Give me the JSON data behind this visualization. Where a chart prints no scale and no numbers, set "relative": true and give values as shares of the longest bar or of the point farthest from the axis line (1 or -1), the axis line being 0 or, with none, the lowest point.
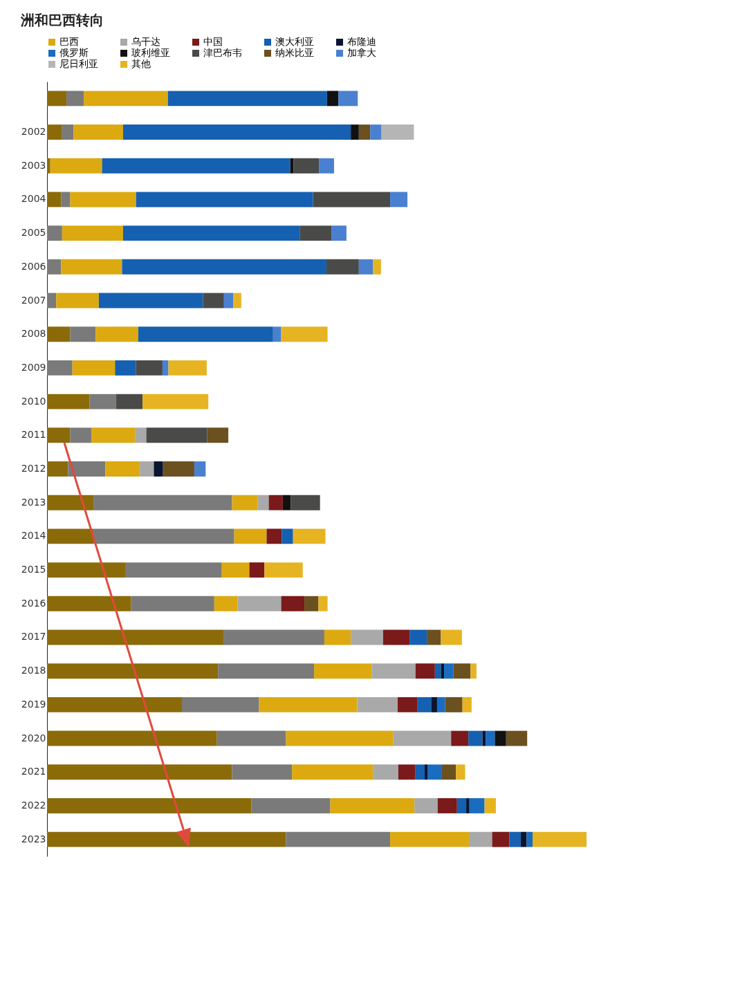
{
  "chart_data": {
    "type": "bar",
    "title": "洲和巴西转向",
    "orientation": "horizontal",
    "stacked": true,
    "relative": true,
    "legend": "top",
    "categories": [
      null,
      "2002",
      "2003",
      "2004",
      "2005",
      "2006",
      "2007",
      "2008",
      "2009",
      "2010",
      "2011",
      "2012",
      "2013",
      "2014",
      "2015",
      "2016",
      "2017",
      "2018",
      "2019",
      "2020",
      "2021",
      "2022",
      "2023"
    ],
    "series": [
      {
        "color": "#8b6a0a",
        "values": [
          0.036,
          0.028,
          0.006,
          0.026,
          null,
          null,
          null,
          0.043,
          null,
          0.079,
          0.043,
          0.039,
          0.086,
          0.086,
          0.146,
          0.156,
          0.328,
          0.317,
          0.25,
          0.315,
          0.343,
          0.379,
          0.443
        ]
      },
      {
        "color": "#7a7a7a",
        "values": [
          0.032,
          0.021,
          null,
          0.017,
          0.028,
          0.026,
          0.017,
          0.047,
          0.047,
          0.049,
          0.039,
          0.069,
          0.257,
          0.261,
          0.178,
          0.154,
          0.186,
          0.178,
          0.143,
          0.128,
          0.111,
          0.146,
          0.193
        ]
      },
      {
        "name": "巴西",
        "color": "#dcaa10",
        "values": [
          0.156,
          0.092,
          0.096,
          0.122,
          0.113,
          0.113,
          0.079,
          0.079,
          0.079,
          null,
          0.081,
          0.064,
          0.047,
          0.06,
          0.051,
          0.043,
          0.049,
          0.107,
          0.182,
          0.199,
          0.15,
          0.156,
          0.146
        ]
      },
      {
        "name": "乌干达",
        "color": "#a9a9a9",
        "values": [
          null,
          null,
          null,
          null,
          null,
          null,
          null,
          null,
          null,
          null,
          0.021,
          0.026,
          0.021,
          null,
          null,
          0.081,
          0.06,
          0.081,
          0.075,
          0.107,
          0.047,
          0.043,
          0.043
        ]
      },
      {
        "name": "中国",
        "color": "#7a1a1a",
        "values": [
          null,
          null,
          null,
          null,
          null,
          null,
          null,
          null,
          null,
          null,
          null,
          null,
          0.026,
          0.028,
          0.028,
          0.043,
          0.049,
          0.036,
          0.036,
          0.032,
          0.032,
          0.036,
          0.032
        ]
      },
      {
        "name": "澳大利亚",
        "color": "#1560b0",
        "values": [
          0.295,
          0.422,
          0.349,
          0.328,
          0.328,
          0.379,
          0.193,
          0.25,
          0.039,
          null,
          null,
          null,
          null,
          0.021,
          null,
          null,
          0.032,
          0.011,
          0.026,
          0.026,
          0.017,
          0.017,
          0.021
        ]
      },
      {
        "name": "布隆迪",
        "color": "#0a1530",
        "values": [
          null,
          null,
          null,
          null,
          null,
          null,
          null,
          null,
          null,
          null,
          null,
          0.017,
          null,
          null,
          null,
          null,
          null,
          0.006,
          0.011,
          0.006,
          0.006,
          0.006,
          0.011
        ]
      },
      {
        "name": "俄罗斯",
        "color": "#1a6cc0",
        "values": [
          null,
          null,
          null,
          null,
          null,
          null,
          null,
          null,
          null,
          null,
          null,
          null,
          null,
          null,
          null,
          null,
          null,
          0.017,
          0.015,
          0.017,
          0.026,
          0.028,
          0.011
        ]
      },
      {
        "name": "玻利维亚",
        "color": "#111111",
        "values": [
          0.021,
          0.015,
          0.006,
          null,
          null,
          null,
          null,
          null,
          null,
          null,
          null,
          null,
          0.015,
          null,
          null,
          null,
          null,
          null,
          null,
          0.021,
          null,
          null,
          null
        ]
      },
      {
        "name": "津巴布韦",
        "color": "#4a4a48",
        "values": [
          null,
          null,
          0.047,
          0.143,
          0.058,
          0.06,
          0.039,
          null,
          0.049,
          0.049,
          0.113,
          null,
          0.054,
          null,
          null,
          null,
          null,
          null,
          null,
          null,
          null,
          null,
          null
        ]
      },
      {
        "name": "纳米比亚",
        "color": "#6b5020",
        "values": [
          null,
          0.021,
          null,
          null,
          null,
          null,
          null,
          null,
          null,
          null,
          0.039,
          0.058,
          null,
          null,
          null,
          0.026,
          0.026,
          0.032,
          0.032,
          0.039,
          0.026,
          null,
          null
        ]
      },
      {
        "name": "加拿大",
        "color": "#4a80d0",
        "values": [
          0.036,
          0.021,
          0.028,
          0.032,
          0.028,
          0.026,
          0.017,
          0.015,
          0.011,
          null,
          null,
          0.021,
          null,
          null,
          null,
          null,
          null,
          null,
          null,
          null,
          null,
          null,
          null
        ]
      },
      {
        "name": "尼日利亚",
        "color": "#b5b5b5",
        "values": [
          null,
          0.06,
          null,
          null,
          null,
          null,
          null,
          null,
          null,
          null,
          null,
          null,
          null,
          null,
          null,
          null,
          null,
          null,
          null,
          null,
          null,
          null,
          null
        ]
      },
      {
        "name": "其他",
        "color": "#e6b422",
        "values": [
          null,
          null,
          null,
          null,
          null,
          0.015,
          0.015,
          0.086,
          0.071,
          0.122,
          null,
          null,
          null,
          0.06,
          0.071,
          0.017,
          0.039,
          0.011,
          0.017,
          null,
          0.017,
          0.021,
          0.1
        ]
      }
    ]
  }
}
